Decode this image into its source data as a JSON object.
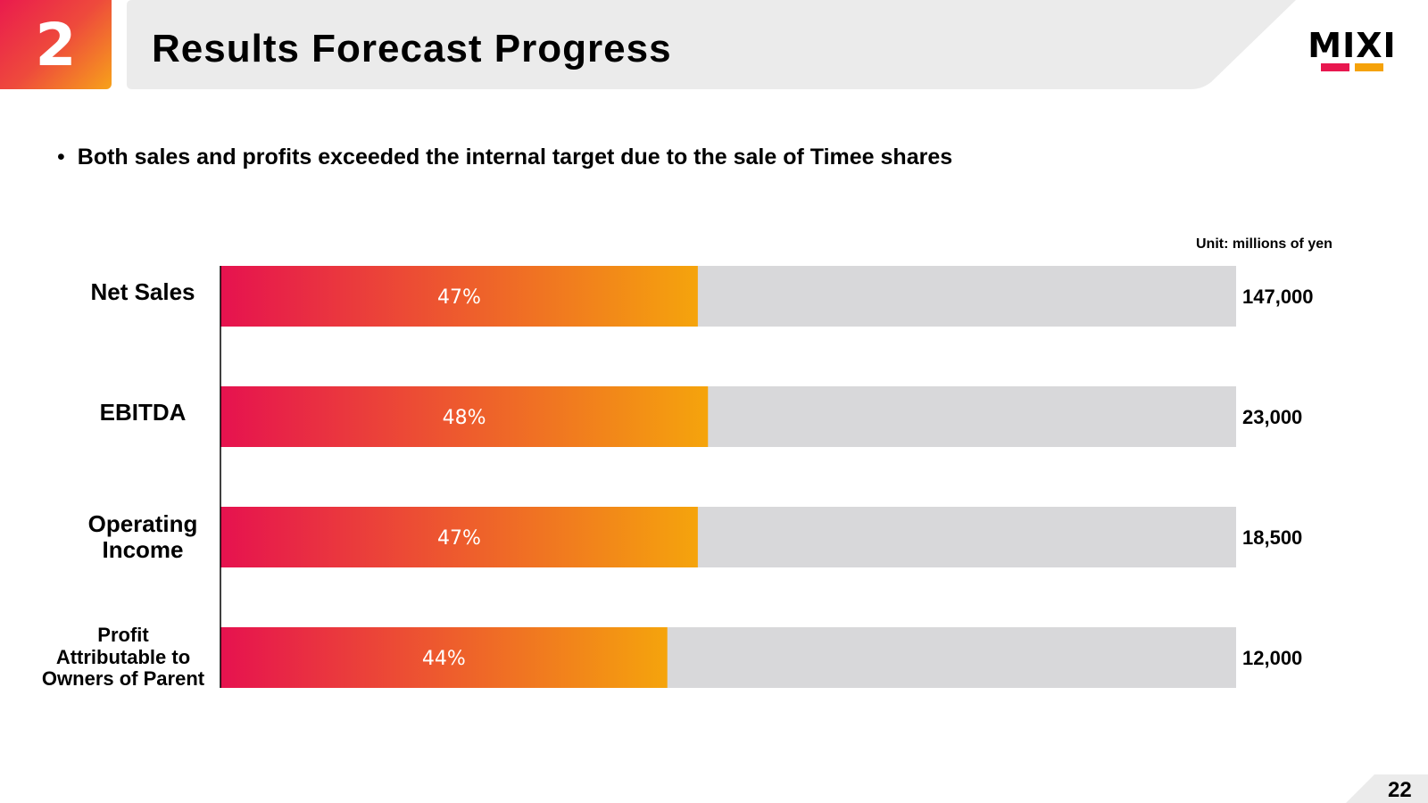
{
  "header": {
    "section_number": "2",
    "title": "Results Forecast Progress",
    "logo_text": "MIXI",
    "logo_colors": [
      "#e8174f",
      "#f5a20a"
    ]
  },
  "bullet": {
    "text": "Both sales and profits exceeded the internal target due to the sale of Timee shares"
  },
  "unit_note": "Unit: millions of yen",
  "chart_data": {
    "type": "bar",
    "orientation": "horizontal",
    "title": "",
    "xlabel": "",
    "ylabel": "",
    "xlim": [
      0,
      100
    ],
    "grid": false,
    "categories": [
      "Net Sales",
      "EBITDA",
      "Operating Income",
      "Profit Attributable to Owners of Parent"
    ],
    "category_lines": [
      [
        "Net Sales"
      ],
      [
        "EBITDA"
      ],
      [
        "Operating",
        "Income"
      ],
      [
        "Profit",
        "Attributable to",
        "Owners of Parent"
      ]
    ],
    "series": [
      {
        "name": "Progress",
        "values": [
          47,
          48,
          47,
          44
        ],
        "labels": [
          "47%",
          "48%",
          "47%",
          "44%"
        ]
      }
    ],
    "targets": [
      147000,
      23000,
      18500,
      12000
    ],
    "target_labels": [
      "147,000",
      "23,000",
      "18,500",
      "12,000"
    ],
    "colors": {
      "gradient_start": "#e6124f",
      "gradient_end": "#f5a40c",
      "remainder": "#d8d8da",
      "axis": "#000000"
    }
  },
  "page_number": "22"
}
